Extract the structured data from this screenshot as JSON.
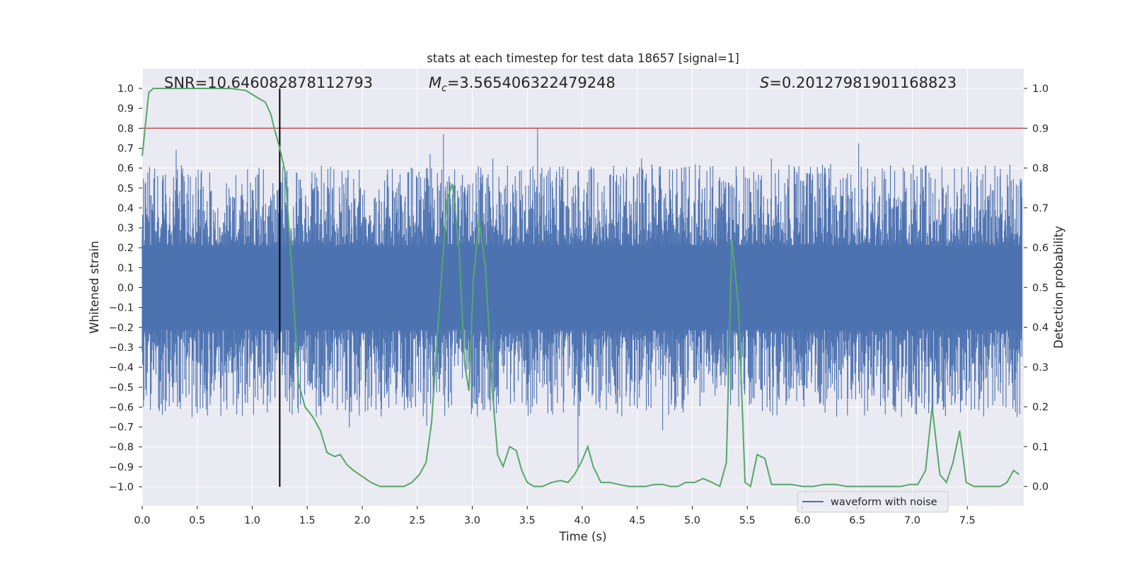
{
  "chart_data": {
    "type": "line",
    "title": "stats at each timestep for test data 18657 [signal=1]",
    "xlabel": "Time (s)",
    "ylabel": "Whitened strain",
    "ylabel_right": "Detection probability",
    "xlim": [
      0,
      8.0
    ],
    "ylim": [
      -1.1,
      1.1
    ],
    "ylim_right": [
      -0.05,
      1.05
    ],
    "xticks": [
      0.0,
      0.5,
      1.0,
      1.5,
      2.0,
      2.5,
      3.0,
      3.5,
      4.0,
      4.5,
      5.0,
      5.5,
      6.0,
      6.5,
      7.0,
      7.5
    ],
    "xtick_labels": [
      "0.0",
      "0.5",
      "1.0",
      "1.5",
      "2.0",
      "2.5",
      "3.0",
      "3.5",
      "4.0",
      "4.5",
      "5.0",
      "5.5",
      "6.0",
      "6.5",
      "7.0",
      "7.5"
    ],
    "yticks": [
      1.0,
      0.9,
      0.8,
      0.7,
      0.6,
      0.5,
      0.4,
      0.3,
      0.2,
      0.1,
      0.0,
      -0.1,
      -0.2,
      -0.3,
      -0.4,
      -0.5,
      -0.6,
      -0.7,
      -0.8,
      -0.9,
      -1.0
    ],
    "ytick_labels": [
      "1.0",
      "0.9",
      "0.8",
      "0.7",
      "0.6",
      "0.5",
      "0.4",
      "0.3",
      "0.2",
      "0.1",
      "0.0",
      "−0.1",
      "−0.2",
      "−0.3",
      "−0.4",
      "−0.5",
      "−0.6",
      "−0.7",
      "−0.8",
      "−0.9",
      "−1.0"
    ],
    "yticks_right": [
      1.0,
      0.9,
      0.8,
      0.7,
      0.6,
      0.5,
      0.4,
      0.3,
      0.2,
      0.1,
      0.0
    ],
    "ytick_labels_right": [
      "1.0",
      "0.9",
      "0.8",
      "0.7",
      "0.6",
      "0.5",
      "0.4",
      "0.3",
      "0.2",
      "0.1",
      "0.0"
    ],
    "grid": true,
    "legend": {
      "entries": [
        "waveform with noise"
      ],
      "placement": "lower-right"
    },
    "annotations": {
      "snr": "SNR=10.646082878112793",
      "mc_prefix": "M",
      "mc_sub": "c",
      "mc_value": "=3.565406322479248",
      "s_prefix": "S",
      "s_value": "=0.20127981901168823"
    },
    "threshold_right": 0.9,
    "marker_time": 1.25,
    "waveform": {
      "name": "waveform with noise",
      "sample_rate": 256,
      "duration": 8.0,
      "core_amplitude": 0.21,
      "typical_peak": 0.5,
      "max_peak": 1.0
    },
    "detection_probability": {
      "x": [
        0.0,
        0.06,
        0.1,
        0.2,
        0.4,
        0.6,
        0.8,
        0.94,
        1.0,
        1.06,
        1.12,
        1.17,
        1.2,
        1.25,
        1.3,
        1.37,
        1.42,
        1.48,
        1.55,
        1.62,
        1.68,
        1.75,
        1.8,
        1.86,
        1.92,
        2.0,
        2.08,
        2.16,
        2.25,
        2.32,
        2.38,
        2.45,
        2.52,
        2.58,
        2.63,
        2.7,
        2.77,
        2.82,
        2.88,
        2.93,
        2.97,
        3.01,
        3.06,
        3.12,
        3.18,
        3.23,
        3.28,
        3.34,
        3.4,
        3.45,
        3.5,
        3.56,
        3.64,
        3.72,
        3.8,
        3.87,
        3.93,
        3.99,
        4.05,
        4.1,
        4.17,
        4.25,
        4.33,
        4.42,
        4.5,
        4.58,
        4.66,
        4.73,
        4.8,
        4.87,
        4.94,
        5.02,
        5.1,
        5.18,
        5.25,
        5.31,
        5.36,
        5.42,
        5.48,
        5.53,
        5.59,
        5.66,
        5.72,
        5.8,
        5.9,
        6.0,
        6.1,
        6.2,
        6.3,
        6.4,
        6.5,
        6.6,
        6.7,
        6.8,
        6.9,
        6.98,
        7.05,
        7.12,
        7.18,
        7.25,
        7.31,
        7.37,
        7.43,
        7.49,
        7.56,
        7.65,
        7.72,
        7.8,
        7.86,
        7.92,
        7.97
      ],
      "y": [
        0.83,
        0.99,
        1.0,
        1.0,
        1.0,
        1.0,
        1.0,
        0.995,
        0.985,
        0.975,
        0.965,
        0.935,
        0.9,
        0.85,
        0.79,
        0.5,
        0.26,
        0.2,
        0.175,
        0.14,
        0.085,
        0.075,
        0.08,
        0.055,
        0.04,
        0.025,
        0.01,
        0.0,
        0.0,
        0.0,
        0.0,
        0.01,
        0.03,
        0.06,
        0.16,
        0.45,
        0.72,
        0.76,
        0.6,
        0.31,
        0.24,
        0.52,
        0.67,
        0.55,
        0.25,
        0.08,
        0.05,
        0.1,
        0.09,
        0.04,
        0.01,
        0.0,
        0.0,
        0.01,
        0.015,
        0.01,
        0.03,
        0.06,
        0.1,
        0.05,
        0.01,
        0.01,
        0.005,
        0.0,
        0.0,
        0.0,
        0.005,
        0.005,
        0.0,
        0.0,
        0.01,
        0.01,
        0.02,
        0.01,
        0.0,
        0.06,
        0.62,
        0.45,
        0.01,
        0.0,
        0.08,
        0.07,
        0.005,
        0.005,
        0.005,
        0.0,
        0.0,
        0.005,
        0.005,
        0.0,
        0.0,
        0.0,
        0.0,
        0.0,
        0.0,
        0.005,
        0.005,
        0.04,
        0.2,
        0.03,
        0.01,
        0.06,
        0.14,
        0.01,
        0.0,
        0.0,
        0.0,
        0.0,
        0.01,
        0.04,
        0.03
      ]
    },
    "colors": {
      "background": "#eaeaf2",
      "grid": "#ffffff",
      "waveform": "#4c72b0",
      "probability": "#55a868",
      "threshold": "#c44e52",
      "marker": "#000000"
    }
  }
}
